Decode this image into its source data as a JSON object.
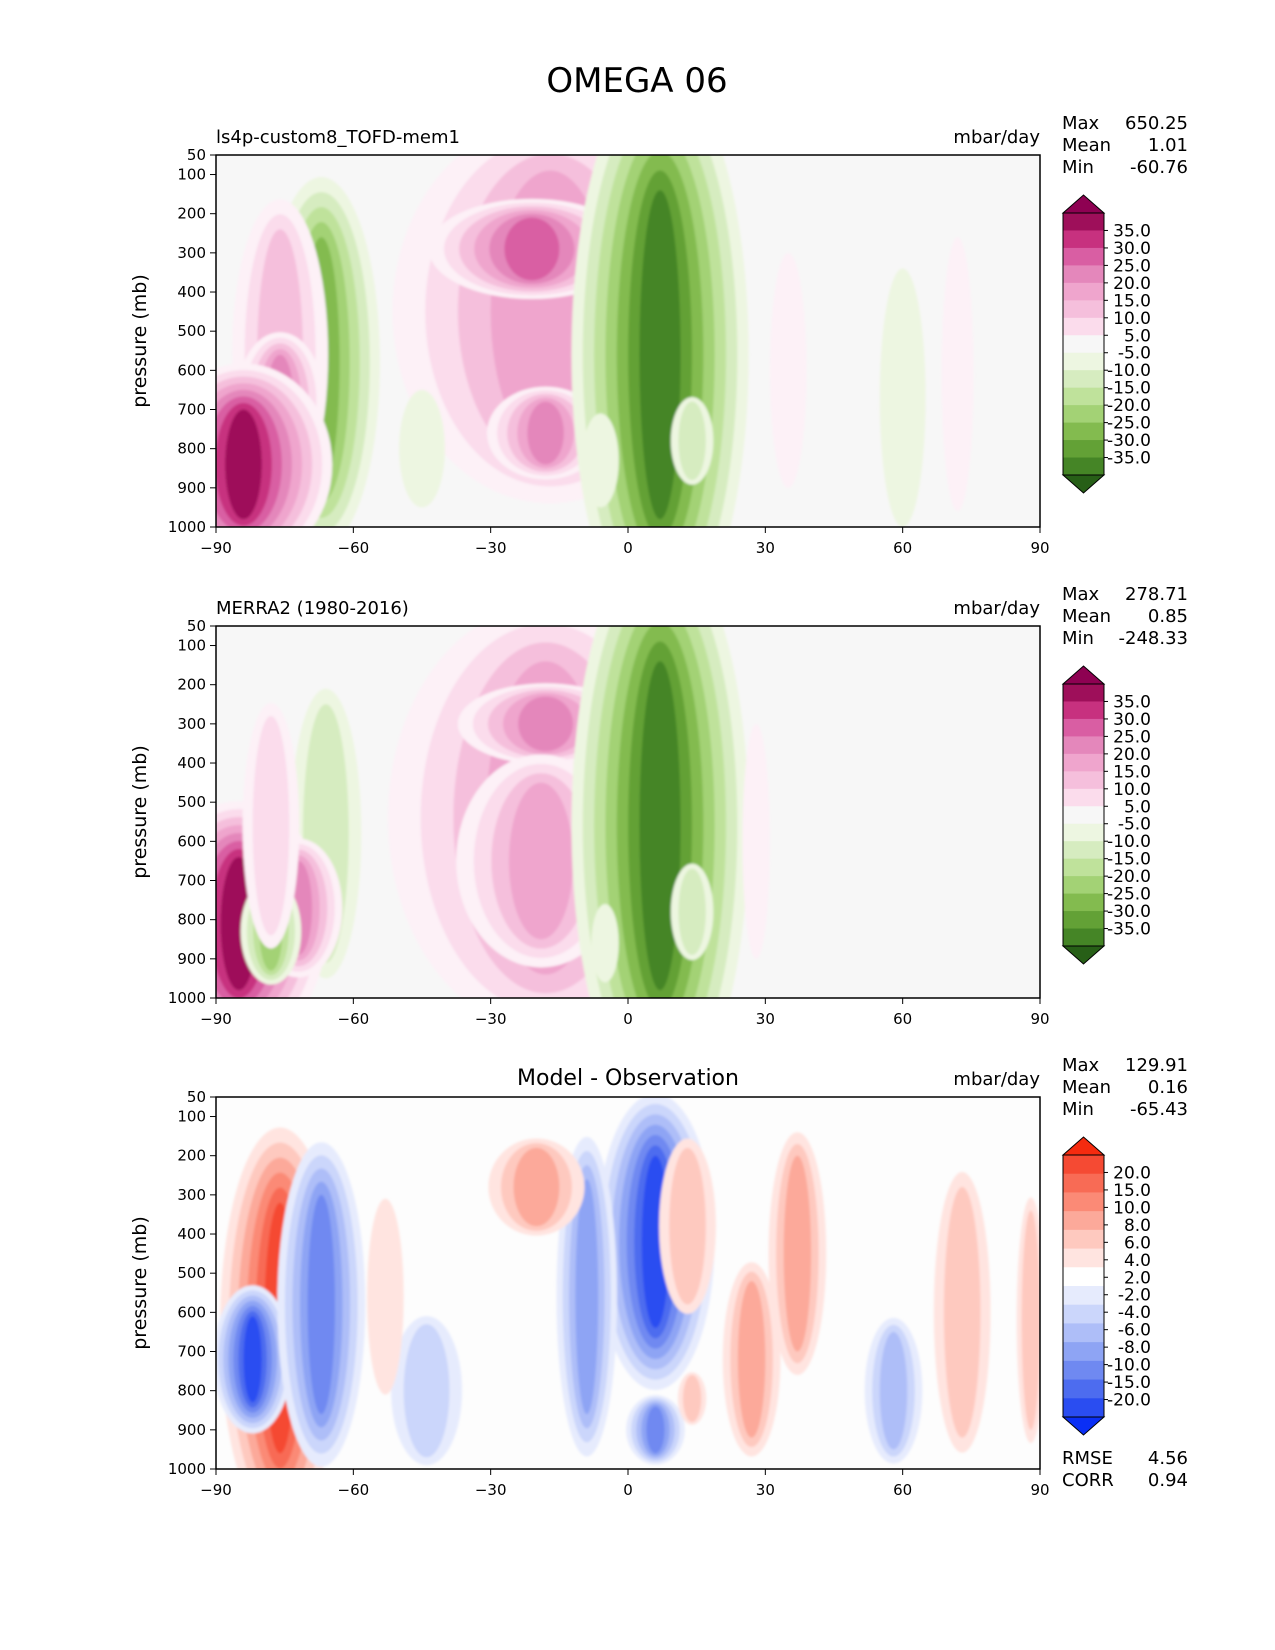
{
  "figure_title": "OMEGA 06",
  "colors": {
    "background": "#f7f7f7",
    "pos_scale": [
      "#fdf1f7",
      "#fbdcec",
      "#f5bfdc",
      "#efa5cd",
      "#e487bb",
      "#d95ea3",
      "#c7317f",
      "#9e0f5a",
      "#8e0152"
    ],
    "neg_scale": [
      "#edf6e1",
      "#d6ecc0",
      "#bfe29b",
      "#a3d275",
      "#83bb4f",
      "#63a136",
      "#458526",
      "#2a6b1b",
      "#275f17"
    ],
    "diff_pos_scale": [
      "#ffe4e0",
      "#fec9bf",
      "#fca99a",
      "#fb8a76",
      "#f86b55",
      "#f54a33",
      "#f52b0f"
    ],
    "diff_neg_scale": [
      "#e6ebfd",
      "#cbd6fb",
      "#aebef8",
      "#8ea4f4",
      "#6f89f1",
      "#4d6cef",
      "#2a4df1",
      "#0a2ff5"
    ]
  },
  "chart_data": [
    {
      "type": "heatmap",
      "panel_label": "ls4p-custom8_TOFD-mem1",
      "units": "mbar/day",
      "stats": [
        {
          "label": "Max",
          "value": "650.25"
        },
        {
          "label": "Mean",
          "value": "1.01"
        },
        {
          "label": "Min",
          "value": "-60.76"
        }
      ],
      "ylabel": "pressure (mb)",
      "xlim": [
        -90,
        90
      ],
      "ylim": [
        1000,
        50
      ],
      "x_ticks": [
        "−90",
        "−60",
        "−30",
        "0",
        "30",
        "60",
        "90"
      ],
      "y_ticks": [
        "50",
        "100",
        "200",
        "300",
        "400",
        "500",
        "600",
        "700",
        "800",
        "900",
        "1000"
      ],
      "colorbar_labels": [
        "35.0",
        "30.0",
        "25.0",
        "20.0",
        "15.0",
        "10.0",
        "5.0",
        "-5.0",
        "-10.0",
        "-15.0",
        "-20.0",
        "-25.0",
        "-30.0",
        "-35.0"
      ],
      "features": [
        {
          "lat": -17,
          "p": 450,
          "w": 13,
          "h": 360,
          "v": 23
        },
        {
          "lat": -21,
          "p": 290,
          "w": 6,
          "h": 80,
          "v": 31
        },
        {
          "lat": -18,
          "p": 760,
          "w": 4,
          "h": 80,
          "v": 28
        },
        {
          "lat": 7,
          "p": 560,
          "w": 4.5,
          "h": 420,
          "v": -38
        },
        {
          "lat": 14,
          "p": 780,
          "w": 3,
          "h": 100,
          "v": -12
        },
        {
          "lat": -67,
          "p": 580,
          "w": 4,
          "h": 320,
          "v": -27
        },
        {
          "lat": -76,
          "p": 560,
          "w": 5,
          "h": 320,
          "v": 16
        },
        {
          "lat": -76,
          "p": 680,
          "w": 3,
          "h": 120,
          "v": 28
        },
        {
          "lat": -84,
          "p": 840,
          "w": 4,
          "h": 140,
          "v": 40
        },
        {
          "lat": 60,
          "p": 670,
          "w": 5,
          "h": 330,
          "v": -7
        },
        {
          "lat": 72,
          "p": 610,
          "w": 3.5,
          "h": 350,
          "v": 7
        },
        {
          "lat": 35,
          "p": 600,
          "w": 4,
          "h": 300,
          "v": 6
        },
        {
          "lat": -6,
          "p": 830,
          "w": 4,
          "h": 120,
          "v": -7
        },
        {
          "lat": -45,
          "p": 800,
          "w": 5,
          "h": 150,
          "v": -6
        }
      ]
    },
    {
      "type": "heatmap",
      "panel_label": "MERRA2 (1980-2016)",
      "units": "mbar/day",
      "stats": [
        {
          "label": "Max",
          "value": "278.71"
        },
        {
          "label": "Mean",
          "value": "0.85"
        },
        {
          "label": "Min",
          "value": "-248.33"
        }
      ],
      "ylabel": "pressure (mb)",
      "xlim": [
        -90,
        90
      ],
      "ylim": [
        1000,
        50
      ],
      "x_ticks": [
        "−90",
        "−60",
        "−30",
        "0",
        "30",
        "60",
        "90"
      ],
      "y_ticks": [
        "50",
        "100",
        "200",
        "300",
        "400",
        "500",
        "600",
        "700",
        "800",
        "900",
        "1000"
      ],
      "colorbar_labels": [
        "35.0",
        "30.0",
        "25.0",
        "20.0",
        "15.0",
        "10.0",
        "5.0",
        "-5.0",
        "-10.0",
        "-15.0",
        "-20.0",
        "-25.0",
        "-30.0",
        "-35.0"
      ],
      "features": [
        {
          "lat": -18,
          "p": 540,
          "w": 13,
          "h": 400,
          "v": 20
        },
        {
          "lat": -18,
          "p": 300,
          "w": 6,
          "h": 70,
          "v": 26
        },
        {
          "lat": -19,
          "p": 650,
          "w": 7,
          "h": 200,
          "v": 22
        },
        {
          "lat": 7,
          "p": 560,
          "w": 4.5,
          "h": 420,
          "v": -38
        },
        {
          "lat": 14,
          "p": 780,
          "w": 3,
          "h": 110,
          "v": -13
        },
        {
          "lat": -66,
          "p": 580,
          "w": 5,
          "h": 330,
          "v": -13
        },
        {
          "lat": -85,
          "p": 810,
          "w": 4,
          "h": 170,
          "v": 40
        },
        {
          "lat": -72,
          "p": 770,
          "w": 3,
          "h": 120,
          "v": 28
        },
        {
          "lat": -78,
          "p": 830,
          "w": 2.5,
          "h": 100,
          "v": -20
        },
        {
          "lat": -78,
          "p": 560,
          "w": 4,
          "h": 280,
          "v": 10
        },
        {
          "lat": 28,
          "p": 600,
          "w": 3,
          "h": 300,
          "v": 5
        },
        {
          "lat": -5,
          "p": 860,
          "w": 3,
          "h": 100,
          "v": -6
        }
      ]
    },
    {
      "type": "heatmap",
      "panel_label": "Model - Observation",
      "units": "mbar/day",
      "stats": [
        {
          "label": "Max",
          "value": "129.91"
        },
        {
          "label": "Mean",
          "value": "0.16"
        },
        {
          "label": "Min",
          "value": "-65.43"
        }
      ],
      "extra_stats": [
        {
          "label": "RMSE",
          "value": "4.56"
        },
        {
          "label": "CORR",
          "value": "0.94"
        }
      ],
      "ylabel": "pressure (mb)",
      "xlim": [
        -90,
        90
      ],
      "ylim": [
        1000,
        50
      ],
      "x_ticks": [
        "−90",
        "−60",
        "−30",
        "0",
        "30",
        "60",
        "90"
      ],
      "y_ticks": [
        "50",
        "100",
        "200",
        "300",
        "400",
        "500",
        "600",
        "700",
        "800",
        "900",
        "1000"
      ],
      "colorbar_labels": [
        "20.0",
        "15.0",
        "10.0",
        "8.0",
        "6.0",
        "4.0",
        "2.0",
        "-2.0",
        "-4.0",
        "-6.0",
        "-8.0",
        "-10.0",
        "-15.0",
        "-20.0"
      ],
      "features": [
        {
          "lat": -76,
          "p": 640,
          "w": 3.5,
          "h": 320,
          "v": 18
        },
        {
          "lat": -82,
          "p": 720,
          "w": 2,
          "h": 110,
          "v": -20
        },
        {
          "lat": -67,
          "p": 580,
          "w": 3,
          "h": 280,
          "v": -14
        },
        {
          "lat": 6,
          "p": 420,
          "w": 3,
          "h": 220,
          "v": -22
        },
        {
          "lat": 6,
          "p": 900,
          "w": 2,
          "h": 60,
          "v": -12
        },
        {
          "lat": -9,
          "p": 560,
          "w": 2.5,
          "h": 300,
          "v": -9
        },
        {
          "lat": -20,
          "p": 280,
          "w": 5,
          "h": 100,
          "v": 6
        },
        {
          "lat": 13,
          "p": 380,
          "w": 4,
          "h": 200,
          "v": 4
        },
        {
          "lat": 27,
          "p": 720,
          "w": 3,
          "h": 200,
          "v": 6
        },
        {
          "lat": 37,
          "p": 450,
          "w": 3,
          "h": 250,
          "v": 7
        },
        {
          "lat": 58,
          "p": 800,
          "w": 3,
          "h": 150,
          "v": -7
        },
        {
          "lat": 73,
          "p": 600,
          "w": 4,
          "h": 320,
          "v": 5
        },
        {
          "lat": -44,
          "p": 800,
          "w": 5,
          "h": 170,
          "v": -5
        },
        {
          "lat": 88,
          "p": 620,
          "w": 2,
          "h": 280,
          "v": 5
        },
        {
          "lat": -53,
          "p": 560,
          "w": 4,
          "h": 250,
          "v": 3
        },
        {
          "lat": 14,
          "p": 820,
          "w": 2,
          "h": 60,
          "v": 5
        }
      ]
    }
  ]
}
